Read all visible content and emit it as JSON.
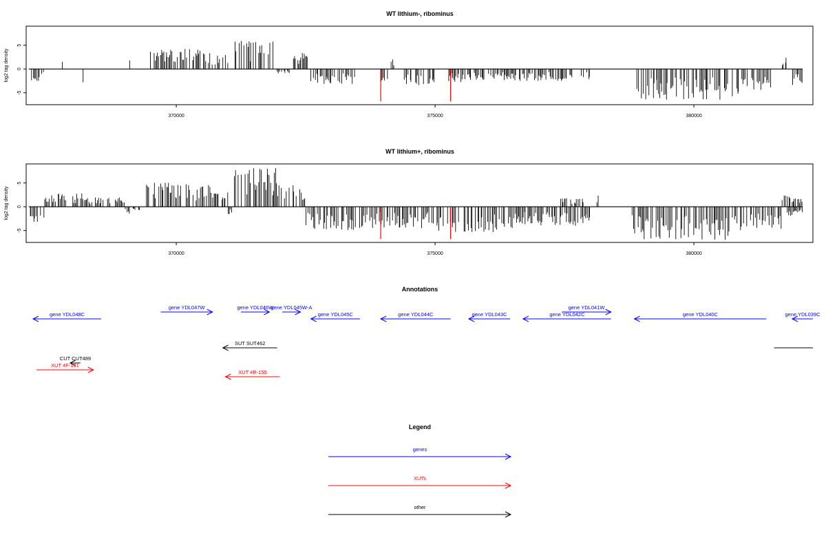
{
  "colors": {
    "genes": "#0000ff",
    "xuts": "#ff0000",
    "other": "#000000",
    "highlight": "#ff0000",
    "bars": "#000000"
  },
  "chart_data": [
    {
      "type": "bar",
      "title": "WT lithium-, ribominus",
      "xlabel": "",
      "ylabel": "log2 tag density",
      "xlim": [
        367100,
        382300
      ],
      "ylim": [
        -7.5,
        9
      ],
      "xticks": [
        370000,
        375000,
        380000
      ],
      "yticks": [
        5,
        0,
        -5
      ],
      "grid": false,
      "highlight_lines": [
        {
          "x": 373950,
          "y": -6.8
        },
        {
          "x": 375300,
          "y": -6.8
        }
      ],
      "regions": [
        {
          "x": [
            367150,
            367450
          ],
          "y": [
            -2.5,
            0
          ]
        },
        {
          "x": [
            367800,
            367830
          ],
          "y": [
            0,
            1.5
          ]
        },
        {
          "x": [
            368200,
            368230
          ],
          "y": [
            -2.8,
            0
          ]
        },
        {
          "x": [
            369100,
            369130
          ],
          "y": [
            0,
            1.8
          ]
        },
        {
          "x": [
            369500,
            370600
          ],
          "y": [
            0,
            4.2
          ]
        },
        {
          "x": [
            370600,
            371000
          ],
          "y": [
            0,
            3.5
          ]
        },
        {
          "x": [
            371100,
            371900
          ],
          "y": [
            0,
            6.0
          ]
        },
        {
          "x": [
            371900,
            372200
          ],
          "y": [
            -1.0,
            0
          ]
        },
        {
          "x": [
            372250,
            372550
          ],
          "y": [
            0,
            3.5
          ]
        },
        {
          "x": [
            372600,
            373450
          ],
          "y": [
            -3.2,
            0
          ]
        },
        {
          "x": [
            373900,
            374100
          ],
          "y": [
            -3.0,
            0
          ]
        },
        {
          "x": [
            374150,
            374250
          ],
          "y": [
            0,
            2.0
          ]
        },
        {
          "x": [
            374400,
            375000
          ],
          "y": [
            -3.5,
            0
          ]
        },
        {
          "x": [
            375250,
            376000
          ],
          "y": [
            -2.8,
            0
          ]
        },
        {
          "x": [
            376000,
            378000
          ],
          "y": [
            -2.5,
            0
          ]
        },
        {
          "x": [
            378800,
            380900
          ],
          "y": [
            -6.5,
            0
          ]
        },
        {
          "x": [
            380900,
            381500
          ],
          "y": [
            -4.5,
            0
          ]
        },
        {
          "x": [
            381700,
            381800
          ],
          "y": [
            0,
            2.4
          ]
        },
        {
          "x": [
            381900,
            382100
          ],
          "y": [
            -3.5,
            0
          ]
        }
      ]
    },
    {
      "type": "bar",
      "title": "WT lithium+, ribominus",
      "xlabel": "",
      "ylabel": "log2 tag density",
      "xlim": [
        367100,
        382300
      ],
      "ylim": [
        -7.5,
        9
      ],
      "xticks": [
        370000,
        375000,
        380000
      ],
      "yticks": [
        5,
        0,
        -5
      ],
      "grid": false,
      "highlight_lines": [
        {
          "x": 373950,
          "y": -6.8
        },
        {
          "x": 375300,
          "y": -6.8
        }
      ],
      "regions": [
        {
          "x": [
            367150,
            367450
          ],
          "y": [
            -3.2,
            0
          ]
        },
        {
          "x": [
            367450,
            368200
          ],
          "y": [
            0,
            2.8
          ]
        },
        {
          "x": [
            368200,
            369000
          ],
          "y": [
            0,
            2.0
          ]
        },
        {
          "x": [
            369000,
            369300
          ],
          "y": [
            -1.5,
            0
          ]
        },
        {
          "x": [
            369400,
            370700
          ],
          "y": [
            0,
            5.2
          ]
        },
        {
          "x": [
            370700,
            371000
          ],
          "y": [
            0,
            3.0
          ]
        },
        {
          "x": [
            371000,
            371100
          ],
          "y": [
            -2.0,
            0
          ]
        },
        {
          "x": [
            371100,
            372000
          ],
          "y": [
            0,
            8.2
          ]
        },
        {
          "x": [
            372000,
            372500
          ],
          "y": [
            0,
            5.0
          ]
        },
        {
          "x": [
            372500,
            373500
          ],
          "y": [
            -5.0,
            0
          ]
        },
        {
          "x": [
            373500,
            375000
          ],
          "y": [
            -4.5,
            0
          ]
        },
        {
          "x": [
            375000,
            376500
          ],
          "y": [
            -5.5,
            0
          ]
        },
        {
          "x": [
            376500,
            378000
          ],
          "y": [
            -4.0,
            0
          ]
        },
        {
          "x": [
            377400,
            377900
          ],
          "y": [
            0,
            1.8
          ]
        },
        {
          "x": [
            378100,
            378200
          ],
          "y": [
            0,
            2.4
          ]
        },
        {
          "x": [
            378800,
            380800
          ],
          "y": [
            -7.0,
            0
          ]
        },
        {
          "x": [
            380800,
            381700
          ],
          "y": [
            -5.0,
            0
          ]
        },
        {
          "x": [
            381700,
            382100
          ],
          "y": [
            0,
            2.4
          ]
        },
        {
          "x": [
            381800,
            382100
          ],
          "y": [
            -2.0,
            0
          ]
        }
      ]
    }
  ],
  "annotations": {
    "title": "Annotations",
    "items": [
      {
        "label": "gene YDL048C",
        "kind": "genes",
        "dir": "left",
        "x1": 367100,
        "x2": 368550,
        "row": 1
      },
      {
        "label": "gene YDL047W",
        "kind": "genes",
        "dir": "right",
        "x1": 369700,
        "x2": 370700,
        "row": 0
      },
      {
        "label": "gene YDL046W",
        "kind": "genes",
        "dir": "right",
        "x1": 371250,
        "x2": 371800,
        "row": 0
      },
      {
        "label": "gene YDL045W-A",
        "kind": "genes",
        "dir": "right",
        "x1": 372050,
        "x2": 372400,
        "row": 0
      },
      {
        "label": "gene YDL045C",
        "kind": "genes",
        "dir": "left",
        "x1": 372600,
        "x2": 373550,
        "row": 1
      },
      {
        "label": "gene YDL044C",
        "kind": "genes",
        "dir": "left",
        "x1": 373950,
        "x2": 375300,
        "row": 1
      },
      {
        "label": "gene YDL043C",
        "kind": "genes",
        "dir": "left",
        "x1": 375650,
        "x2": 376450,
        "row": 1
      },
      {
        "label": "gene YDL042C",
        "kind": "genes",
        "dir": "left",
        "x1": 376700,
        "x2": 378400,
        "row": 1
      },
      {
        "label": "gene YDL041W",
        "kind": "genes",
        "dir": "right",
        "x1": 377450,
        "x2": 378400,
        "row": 0
      },
      {
        "label": "gene YDL040C",
        "kind": "genes",
        "dir": "left",
        "x1": 378850,
        "x2": 381400,
        "row": 1
      },
      {
        "label": "gene YDL039C",
        "kind": "genes",
        "dir": "left",
        "x1": 381900,
        "x2": 382300,
        "row": 1
      },
      {
        "label": "SUT SUT462",
        "kind": "other",
        "dir": "left",
        "x1": 370900,
        "x2": 371950,
        "row": 2
      },
      {
        "label": "",
        "kind": "other",
        "dir": "none",
        "x1": 381550,
        "x2": 382300,
        "row": 2
      },
      {
        "label": "CUT CUT489",
        "kind": "other",
        "dir": "left",
        "x1": 367950,
        "x2": 368150,
        "row": 3
      },
      {
        "label": "XUT 4F-181",
        "kind": "xuts",
        "dir": "right",
        "x1": 367300,
        "x2": 368400,
        "row": 4
      },
      {
        "label": "XUT 4R-155",
        "kind": "xuts",
        "dir": "left",
        "x1": 370950,
        "x2": 372000,
        "row": 5
      }
    ]
  },
  "legend": {
    "title": "Legend",
    "items": [
      {
        "label": "genes",
        "kind": "genes"
      },
      {
        "label": "XUTs",
        "kind": "xuts"
      },
      {
        "label": "other",
        "kind": "other"
      }
    ]
  }
}
